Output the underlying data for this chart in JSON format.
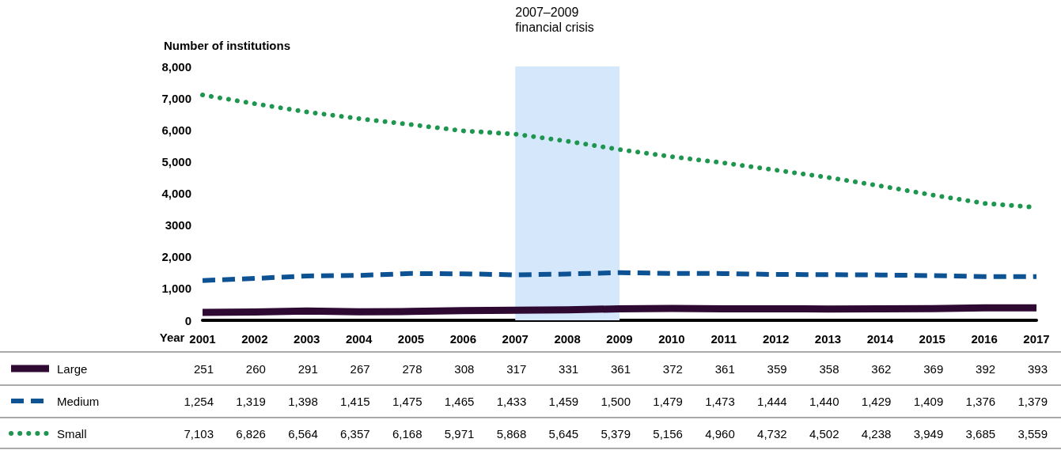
{
  "chart_data": {
    "type": "line",
    "ylabel": "Number of institutions",
    "xlabel": "Year",
    "categories": [
      "2001",
      "2002",
      "2003",
      "2004",
      "2005",
      "2006",
      "2007",
      "2008",
      "2009",
      "2010",
      "2011",
      "2012",
      "2013",
      "2014",
      "2015",
      "2016",
      "2017"
    ],
    "series": [
      {
        "name": "Large",
        "color": "#2e0a33",
        "line_style": "solid",
        "values": [
          251,
          260,
          291,
          267,
          278,
          308,
          317,
          331,
          361,
          372,
          361,
          359,
          358,
          362,
          369,
          392,
          393
        ],
        "value_labels": [
          "251",
          "260",
          "291",
          "267",
          "278",
          "308",
          "317",
          "331",
          "361",
          "372",
          "361",
          "359",
          "358",
          "362",
          "369",
          "392",
          "393"
        ]
      },
      {
        "name": "Medium",
        "color": "#0d5394",
        "line_style": "dashed",
        "values": [
          1254,
          1319,
          1398,
          1415,
          1475,
          1465,
          1433,
          1459,
          1500,
          1479,
          1473,
          1444,
          1440,
          1429,
          1409,
          1376,
          1379
        ],
        "value_labels": [
          "1,254",
          "1,319",
          "1,398",
          "1,415",
          "1,475",
          "1,465",
          "1,433",
          "1,459",
          "1,500",
          "1,479",
          "1,473",
          "1,444",
          "1,440",
          "1,429",
          "1,409",
          "1,376",
          "1,379"
        ]
      },
      {
        "name": "Small",
        "color": "#1f9650",
        "line_style": "dotted",
        "values": [
          7103,
          6826,
          6564,
          6357,
          6168,
          5971,
          5868,
          5645,
          5379,
          5156,
          4960,
          4732,
          4502,
          4238,
          3949,
          3685,
          3559
        ],
        "value_labels": [
          "7,103",
          "6,826",
          "6,564",
          "6,357",
          "6,168",
          "5,971",
          "5,868",
          "5,645",
          "5,379",
          "5,156",
          "4,960",
          "4,732",
          "4,502",
          "4,238",
          "3,949",
          "3,685",
          "3,559"
        ]
      }
    ],
    "ylim": [
      0,
      8000
    ],
    "yticks": [
      {
        "value": 0,
        "label": "0"
      },
      {
        "value": 1000,
        "label": "1,000"
      },
      {
        "value": 2000,
        "label": "2,000"
      },
      {
        "value": 3000,
        "label": "3000"
      },
      {
        "value": 4000,
        "label": "4,000"
      },
      {
        "value": 5000,
        "label": "5,000"
      },
      {
        "value": 6000,
        "label": "6,000"
      },
      {
        "value": 7000,
        "label": "7,000"
      },
      {
        "value": 8000,
        "label": "8,000"
      }
    ],
    "bands": [
      {
        "axis": "x",
        "from": "2007",
        "to": "2009",
        "label": "2007–2009\nfinancial crisis",
        "color": "#d5e8fb"
      }
    ],
    "grid": false,
    "legend": "bottom left",
    "marker": "none"
  }
}
